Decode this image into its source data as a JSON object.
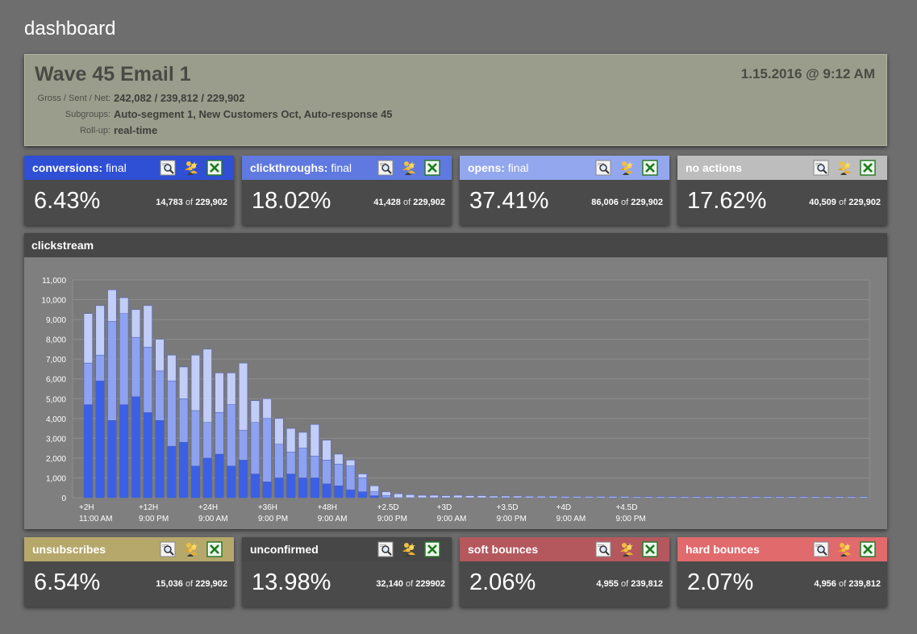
{
  "page": {
    "title": "dashboard"
  },
  "summary": {
    "campaign": "Wave 45 Email 1",
    "datetime": "1.15.2016 @ 9:12 AM",
    "gross_label": "Gross / Sent / Net:",
    "gross_value": "242,082 / 239,812 / 229,902",
    "subgroups_label": "Subgroups:",
    "subgroups_value": "Auto-segment 1, New Customers Oct, Auto-response 45",
    "rollup_label": "Roll-up:",
    "rollup_value": "real-time"
  },
  "colors": {
    "blue_dark": "#2f4fd4",
    "blue_mid": "#6079e0",
    "blue_light": "#93a7ee",
    "gray_head": "#bdbdbd",
    "gold": "#b6a86b",
    "dark_head": "#474747",
    "red_mid": "#b4585e",
    "red_light": "#e16a6c"
  },
  "cards": [
    {
      "title": "conversions:",
      "status": "final",
      "pct": "6.43%",
      "num": "14,783",
      "of": "of",
      "den": "229,902",
      "color": "#2f4fd4"
    },
    {
      "title": "clickthroughs:",
      "status": "final",
      "pct": "18.02%",
      "num": "41,428",
      "of": "of",
      "den": "229,902",
      "color": "#6079e0"
    },
    {
      "title": "opens:",
      "status": "final",
      "pct": "37.41%",
      "num": "86,006",
      "of": "of",
      "den": "229,902",
      "color": "#93a7ee"
    },
    {
      "title": "no actions",
      "status": "",
      "pct": "17.62%",
      "num": "40,509",
      "of": "of",
      "den": "229,902",
      "color": "#bdbdbd"
    },
    {
      "title": "unsubscribes",
      "status": "",
      "pct": "6.54%",
      "num": "15,036",
      "of": "of",
      "den": "229,902",
      "color": "#b6a86b"
    },
    {
      "title": "unconfirmed",
      "status": "",
      "pct": "13.98%",
      "num": "32,140",
      "of": "of",
      "den": "229902",
      "color": "#474747"
    },
    {
      "title": "soft bounces",
      "status": "",
      "pct": "2.06%",
      "num": "4,955",
      "of": "of",
      "den": "239,812",
      "color": "#b4585e"
    },
    {
      "title": "hard bounces",
      "status": "",
      "pct": "2.07%",
      "num": "4,956",
      "of": "of",
      "den": "239,812",
      "color": "#e16a6c"
    }
  ],
  "card_icons": [
    "magnifier-icon",
    "users-icon",
    "excel-icon"
  ],
  "stream": {
    "title": "clickstream"
  },
  "chart_data": {
    "type": "bar",
    "stacked": true,
    "bars_per_tick": 5,
    "ylim": [
      0,
      11000
    ],
    "yticks": [
      "0",
      "1,000",
      "2,000",
      "3,000",
      "4,000",
      "5,000",
      "6,000",
      "7,000",
      "8,000",
      "9,000",
      "10,000",
      "11,000"
    ],
    "xticks": [
      {
        "label": "+2H",
        "sub": "11:00 AM"
      },
      {
        "label": "+12H",
        "sub": "9:00 PM"
      },
      {
        "label": "+24H",
        "sub": "9:00 AM"
      },
      {
        "label": "+36H",
        "sub": "9:00 PM"
      },
      {
        "label": "+48H",
        "sub": "9:00 AM"
      },
      {
        "label": "+2.5D",
        "sub": "9:00 PM"
      },
      {
        "label": "+3D",
        "sub": "9:00 AM"
      },
      {
        "label": "+3.5D",
        "sub": "9:00 PM"
      },
      {
        "label": "+4D",
        "sub": "9:00 AM"
      },
      {
        "label": "+4.5D",
        "sub": "9:00 PM"
      }
    ],
    "grid": true,
    "series": [
      {
        "color": "#3b60e6",
        "values": [
          4700,
          5900,
          3900,
          4700,
          5100,
          4300,
          3900,
          2600,
          2800,
          1600,
          2000,
          2200,
          1600,
          1900,
          1200,
          800,
          1000,
          1200,
          1000,
          1000,
          700,
          600,
          400,
          300,
          100,
          0,
          0,
          0,
          0,
          0,
          0,
          0,
          0,
          0,
          0,
          0,
          0,
          0,
          0,
          0,
          0,
          0,
          0,
          0,
          0,
          0,
          0,
          0,
          0,
          0,
          0,
          0,
          0,
          0,
          0,
          0,
          0,
          0,
          0,
          0,
          0,
          0,
          0,
          0,
          0,
          0
        ]
      },
      {
        "color": "#8ea2f2",
        "values": [
          2100,
          1300,
          5000,
          4600,
          3000,
          3300,
          2500,
          3300,
          2200,
          2800,
          1800,
          2100,
          3100,
          1500,
          2600,
          3200,
          1700,
          1100,
          1500,
          1100,
          1200,
          1100,
          1200,
          700,
          200,
          100,
          0,
          0,
          0,
          0,
          0,
          0,
          0,
          0,
          0,
          0,
          0,
          0,
          0,
          0,
          0,
          0,
          0,
          0,
          0,
          0,
          0,
          0,
          0,
          0,
          0,
          0,
          0,
          0,
          0,
          0,
          0,
          0,
          0,
          0,
          0,
          0,
          0,
          0,
          0,
          0
        ]
      },
      {
        "color": "#c2cdf8",
        "values": [
          2500,
          2500,
          1600,
          800,
          1400,
          2100,
          1600,
          1300,
          1600,
          2800,
          3700,
          2000,
          1600,
          3400,
          1100,
          1000,
          1300,
          1200,
          800,
          1600,
          1000,
          500,
          300,
          200,
          300,
          200,
          200,
          150,
          120,
          120,
          100,
          120,
          100,
          100,
          80,
          80,
          80,
          70,
          70,
          70,
          60,
          60,
          60,
          60,
          60,
          60,
          50,
          50,
          50,
          50,
          50,
          50,
          50,
          50,
          50,
          50,
          50,
          50,
          50,
          50,
          50,
          50,
          50,
          50,
          50,
          50
        ]
      }
    ]
  }
}
